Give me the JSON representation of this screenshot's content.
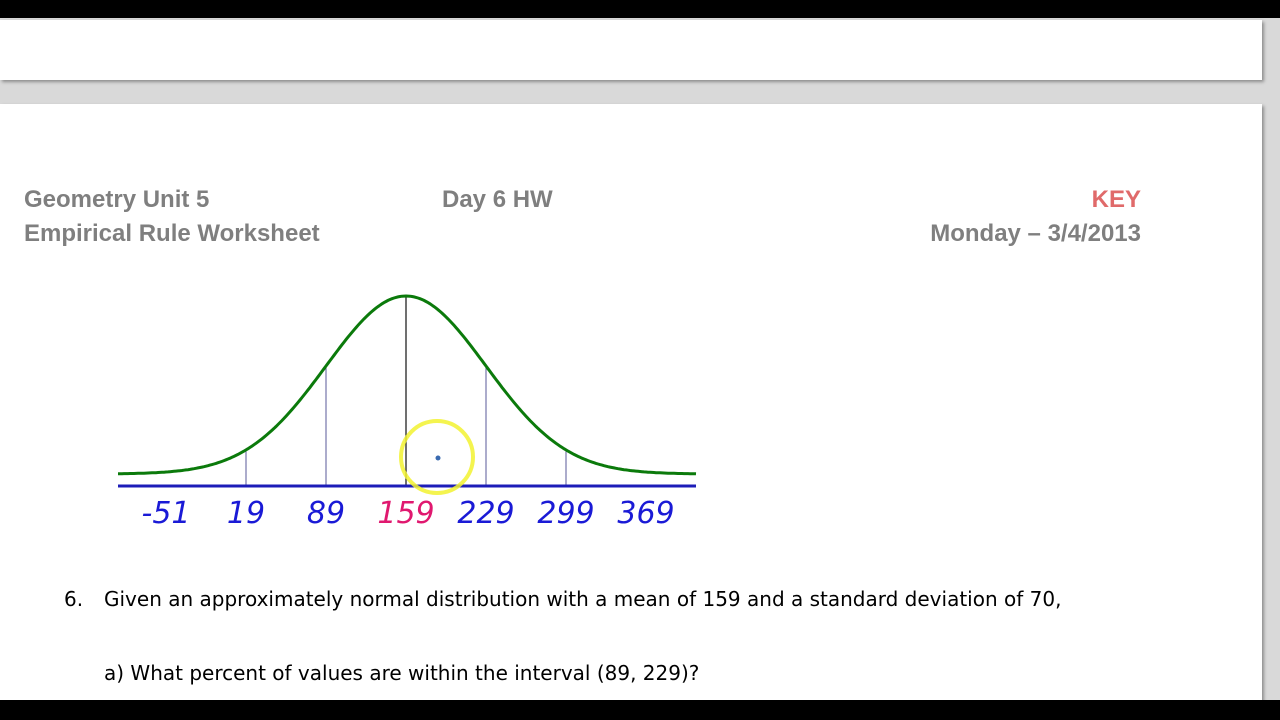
{
  "header": {
    "course": "Geometry Unit 5",
    "worksheet": "Empirical Rule Worksheet",
    "assignment": "Day 6 HW",
    "key_label": "KEY",
    "date": "Monday – 3/4/2013"
  },
  "colors": {
    "curve": "#0b7a0b",
    "axis": "#1d1db8",
    "tick_labels": "#1a1ad6",
    "mean_label": "#e0186f",
    "key": "#e06a6a",
    "highlight": "#f2f230"
  },
  "chart_data": {
    "type": "line",
    "ticks": [
      "-51",
      "19",
      "89",
      "159",
      "229",
      "299",
      "369"
    ],
    "mean": 159,
    "std_dev": 70
  },
  "question": {
    "number": "6.",
    "text": "Given an approximately normal distribution with a mean of 159 and a standard deviation of 70,",
    "part_a": "a) What percent of values are within the interval (89, 229)?"
  }
}
